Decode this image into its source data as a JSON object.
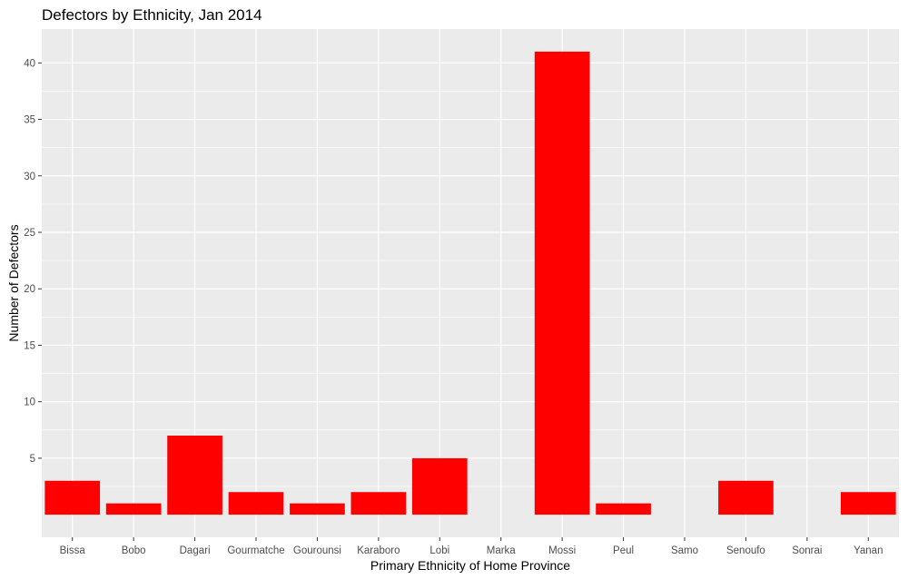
{
  "chart_data": {
    "type": "bar",
    "title": "Defectors by Ethnicity, Jan 2014",
    "xlabel": "Primary Ethnicity of Home Province",
    "ylabel": "Number of Defectors",
    "categories": [
      "Bissa",
      "Bobo",
      "Dagari",
      "Gourmatche",
      "Gourounsi",
      "Karaboro",
      "Lobi",
      "Marka",
      "Mossi",
      "Peul",
      "Samo",
      "Senoufo",
      "Sonrai",
      "Yanan"
    ],
    "values": [
      3,
      1,
      7,
      2,
      1,
      2,
      5,
      null,
      41,
      1,
      null,
      3,
      null,
      2
    ],
    "yticks": [
      5,
      10,
      15,
      20,
      25,
      30,
      35,
      40
    ],
    "ylim": [
      -2,
      43
    ],
    "bar_color": "#ff0000",
    "panel_color": "#ebebeb",
    "grid": true,
    "legend": "none"
  }
}
